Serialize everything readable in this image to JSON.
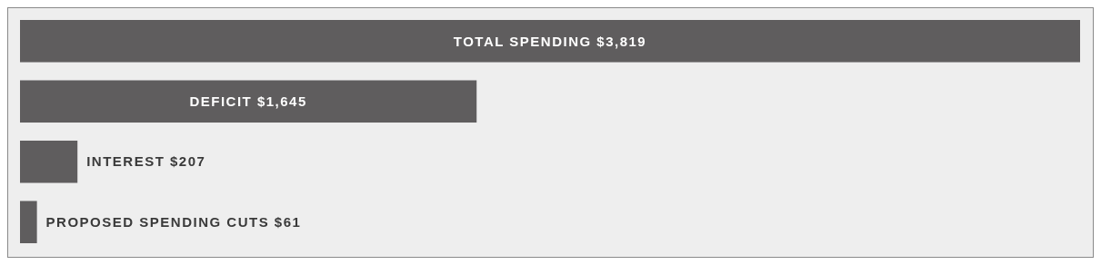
{
  "chart_data": {
    "type": "bar",
    "orientation": "horizontal",
    "categories": [
      null,
      null,
      null,
      null
    ],
    "values": [
      3819,
      1645,
      207,
      61
    ],
    "value_labels": [
      "TOTAL SPENDING $3,819",
      "DEFICIT $1,645",
      "INTEREST $207",
      "PROPOSED SPENDING CUTS $61"
    ],
    "color": "#5f5d5e"
  }
}
